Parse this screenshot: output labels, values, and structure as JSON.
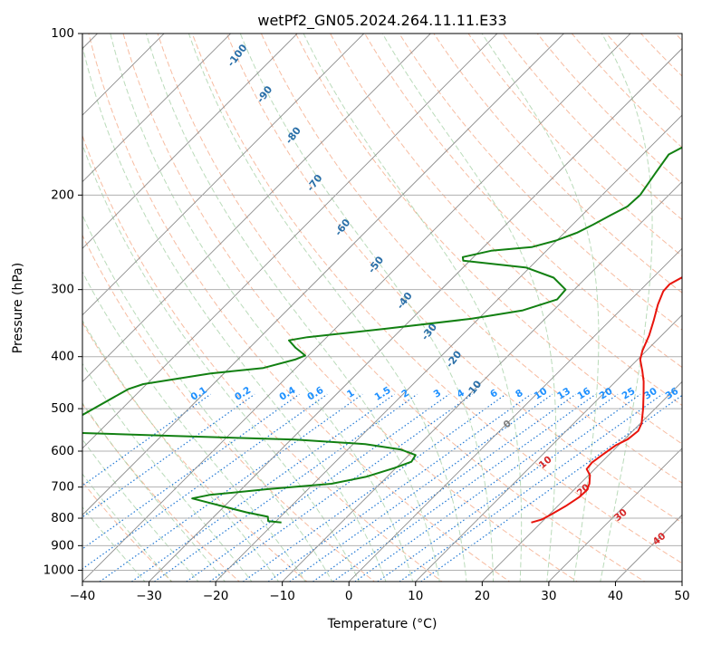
{
  "chart_data": {
    "type": "line",
    "subtype": "skew-t log-p diagram",
    "title": "wetPf2_GN05.2024.264.11.11.E33",
    "xlabel": "Temperature (°C)",
    "ylabel": "Pressure (hPa)",
    "xlim": [
      -40,
      50
    ],
    "ylim": [
      1050,
      100
    ],
    "yscale": "log",
    "grid": true,
    "x_ticks": [
      "−40",
      "−30",
      "−20",
      "−10",
      "0",
      "10",
      "20",
      "30",
      "40",
      "50"
    ],
    "y_ticks": [
      "100",
      "200",
      "300",
      "400",
      "500",
      "600",
      "700",
      "800",
      "900",
      "1000"
    ],
    "series": [
      {
        "role": "temperature",
        "color": "#e8140c",
        "points": [
          [
            18.5,
            815
          ],
          [
            19.6,
            805
          ],
          [
            20.2,
            790
          ],
          [
            21.2,
            760
          ],
          [
            21.9,
            730
          ],
          [
            22.0,
            710
          ],
          [
            21.4,
            690
          ],
          [
            20.2,
            665
          ],
          [
            18.8,
            648
          ],
          [
            18.6,
            630
          ],
          [
            19.0,
            610
          ],
          [
            19.6,
            585
          ],
          [
            20.5,
            570
          ],
          [
            20.8,
            550
          ],
          [
            20.2,
            533
          ],
          [
            18.2,
            500
          ],
          [
            16.1,
            470
          ],
          [
            14.2,
            445
          ],
          [
            12.4,
            425
          ],
          [
            10.4,
            405
          ],
          [
            9.4,
            390
          ],
          [
            8.1,
            365
          ],
          [
            6.6,
            343
          ],
          [
            4.8,
            320
          ],
          [
            3.6,
            302
          ],
          [
            3.5,
            293
          ],
          [
            4.5,
            283
          ],
          [
            6.2,
            270
          ],
          [
            6.1,
            250
          ],
          [
            5.8,
            220
          ],
          [
            5.6,
            197
          ],
          [
            5.9,
            176
          ],
          [
            6.6,
            155
          ],
          [
            6.9,
            135
          ],
          [
            6.9,
            127
          ],
          [
            7.6,
            120
          ],
          [
            8.6,
            113
          ],
          [
            9.3,
            107
          ],
          [
            9.3,
            100
          ]
        ]
      },
      {
        "role": "dewpoint",
        "color": "#128012",
        "points": [
          [
            -19.0,
            815
          ],
          [
            -21.2,
            810
          ],
          [
            -21.9,
            795
          ],
          [
            -25.8,
            780
          ],
          [
            -36.0,
            735
          ],
          [
            -33.9,
            724
          ],
          [
            -26.0,
            706
          ],
          [
            -17.3,
            690
          ],
          [
            -13.2,
            670
          ],
          [
            -10.2,
            645
          ],
          [
            -8.6,
            628
          ],
          [
            -9.0,
            610
          ],
          [
            -12.0,
            596
          ],
          [
            -18.2,
            582
          ],
          [
            -29.4,
            571
          ],
          [
            -48.0,
            562
          ],
          [
            -67.0,
            553
          ],
          [
            -62.0,
            460
          ],
          [
            -60.5,
            450
          ],
          [
            -52.0,
            430
          ],
          [
            -44.9,
            420
          ],
          [
            -41.4,
            405
          ],
          [
            -40.5,
            398
          ],
          [
            -43.1,
            385
          ],
          [
            -45.2,
            373
          ],
          [
            -42.9,
            368
          ],
          [
            -32.6,
            355
          ],
          [
            -21.1,
            340
          ],
          [
            -14.6,
            328
          ],
          [
            -11.1,
            313
          ],
          [
            -11.3,
            300
          ],
          [
            -14.9,
            285
          ],
          [
            -20.5,
            273
          ],
          [
            -31.0,
            265
          ],
          [
            -31.6,
            261
          ],
          [
            -28.3,
            254
          ],
          [
            -22.8,
            250
          ],
          [
            -20.1,
            243
          ],
          [
            -18.1,
            235
          ],
          [
            -16.9,
            227
          ],
          [
            -15.7,
            218
          ],
          [
            -14.5,
            210
          ],
          [
            -14.3,
            200
          ],
          [
            -15.3,
            182
          ],
          [
            -16.1,
            168
          ],
          [
            -13.6,
            155
          ],
          [
            -11.3,
            138
          ],
          [
            -10.6,
            125
          ],
          [
            -9.2,
            117
          ],
          [
            -7.9,
            110
          ],
          [
            -5.8,
            100
          ]
        ]
      }
    ],
    "background_lines": {
      "skew_isotherms": "solid gray",
      "dry_adiabats": "dashed red",
      "moist_adiabats": "dashed green",
      "mixing_ratio": "dotted blue"
    },
    "annotations": {
      "moist_adiabat_labels": [
        {
          "text": "-100",
          "x": -16.7,
          "p": 110
        },
        {
          "text": "-90",
          "x": -12.6,
          "p": 130
        },
        {
          "text": "-80",
          "x": -8.3,
          "p": 155
        },
        {
          "text": "-70",
          "x": -5.1,
          "p": 190
        },
        {
          "text": "-60",
          "x": -0.9,
          "p": 230
        },
        {
          "text": "-50",
          "x": 4.1,
          "p": 270
        },
        {
          "text": "-40",
          "x": 8.4,
          "p": 315
        },
        {
          "text": "-30",
          "x": 12.1,
          "p": 360
        },
        {
          "text": "-20",
          "x": 15.8,
          "p": 405
        },
        {
          "text": "-10",
          "x": 18.8,
          "p": 460
        }
      ],
      "mixing_ratio_labels": [
        {
          "text": "0.1",
          "x": -22.3
        },
        {
          "text": "0.2",
          "x": -15.7
        },
        {
          "text": "0.4",
          "x": -9.0
        },
        {
          "text": "0.6",
          "x": -4.8
        },
        {
          "text": "1",
          "x": 0.5
        },
        {
          "text": "1.5",
          "x": 5.3
        },
        {
          "text": "2",
          "x": 8.7
        },
        {
          "text": "3",
          "x": 13.5
        },
        {
          "text": "4",
          "x": 17.0
        },
        {
          "text": "6",
          "x": 22.0
        },
        {
          "text": "8",
          "x": 25.8
        },
        {
          "text": "10",
          "x": 29.0
        },
        {
          "text": "13",
          "x": 32.5
        },
        {
          "text": "16",
          "x": 35.5
        },
        {
          "text": "20",
          "x": 38.8
        },
        {
          "text": "25",
          "x": 42.2
        },
        {
          "text": "30",
          "x": 45.5
        },
        {
          "text": "36",
          "x": 48.7
        }
      ],
      "dry_adiabat_labels": [
        {
          "text": "0",
          "x": 23.8,
          "p": 535
        },
        {
          "text": "10",
          "x": 29.5,
          "p": 630
        },
        {
          "text": "20",
          "x": 35.2,
          "p": 710
        },
        {
          "text": "30",
          "x": 40.8,
          "p": 790
        },
        {
          "text": "40",
          "x": 46.6,
          "p": 875
        }
      ]
    },
    "colors": {
      "temperature": "#e8140c",
      "dewpoint": "#128012",
      "isotherm": "#8c8c8c",
      "dry_adiabat": "#f4a582",
      "moist_adiabat": "#9ccc9c",
      "mixing_ratio": "#1f77d4",
      "moist_label": "#2a6fa8",
      "mixing_label": "#1e90ff",
      "dry_label": "#d62728"
    }
  }
}
